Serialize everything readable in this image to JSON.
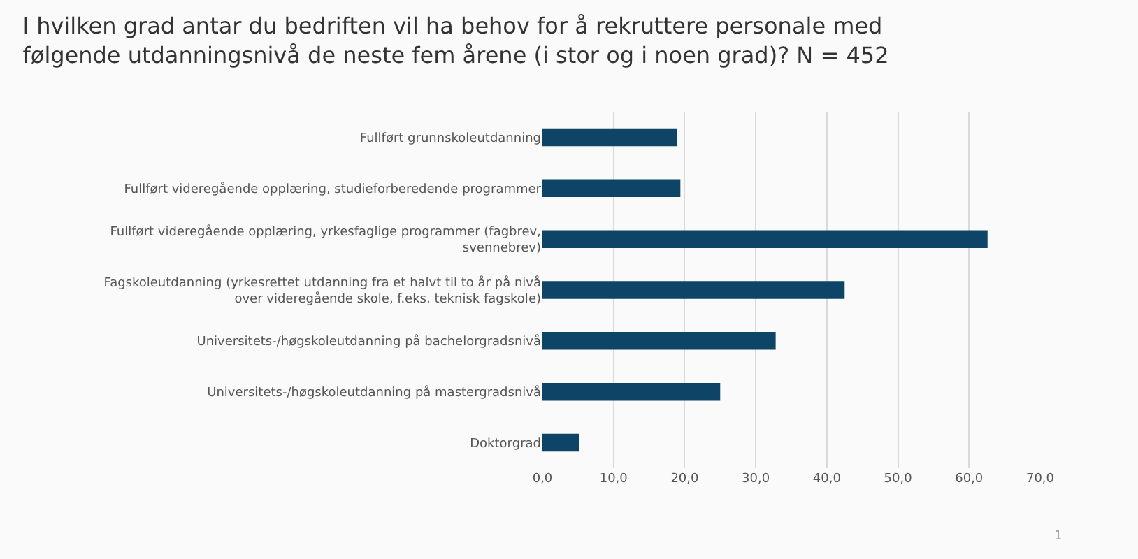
{
  "chart_data": {
    "type": "bar",
    "orientation": "horizontal",
    "title": "I hvilken grad antar du bedriften vil ha behov for å rekruttere personale med følgende utdanningsnivå de neste fem årene (i stor og i noen grad)? N = 452",
    "categories": [
      "Fullført grunnskoleutdanning",
      "Fullført videregående opplæring, studieforberedende programmer",
      "Fullført videregående opplæring, yrkesfaglige programmer (fagbrev, svennebrev)",
      "Fagskoleutdanning (yrkesrettet utdanning fra et halvt til to år på nivå over videregående skole, f.eks. teknisk fagskole)",
      "Universitets-/høgskoleutdanning på bachelorgradsnivå",
      "Universitets-/høgskoleutdanning på mastergradsnivå",
      "Doktorgrad"
    ],
    "values": [
      18.9,
      19.4,
      62.6,
      42.5,
      32.8,
      25.0,
      5.2
    ],
    "color": "#0e4466",
    "xlim": [
      0,
      70
    ],
    "xticks": [
      {
        "value": 0,
        "label": "0,0"
      },
      {
        "value": 10,
        "label": "10,0"
      },
      {
        "value": 20,
        "label": "20,0"
      },
      {
        "value": 30,
        "label": "30,0"
      },
      {
        "value": 40,
        "label": "40,0"
      },
      {
        "value": 50,
        "label": "50,0"
      },
      {
        "value": 60,
        "label": "60,0"
      },
      {
        "value": 70,
        "label": "70,0"
      }
    ],
    "grid": "x",
    "annotations": [
      "1"
    ]
  }
}
